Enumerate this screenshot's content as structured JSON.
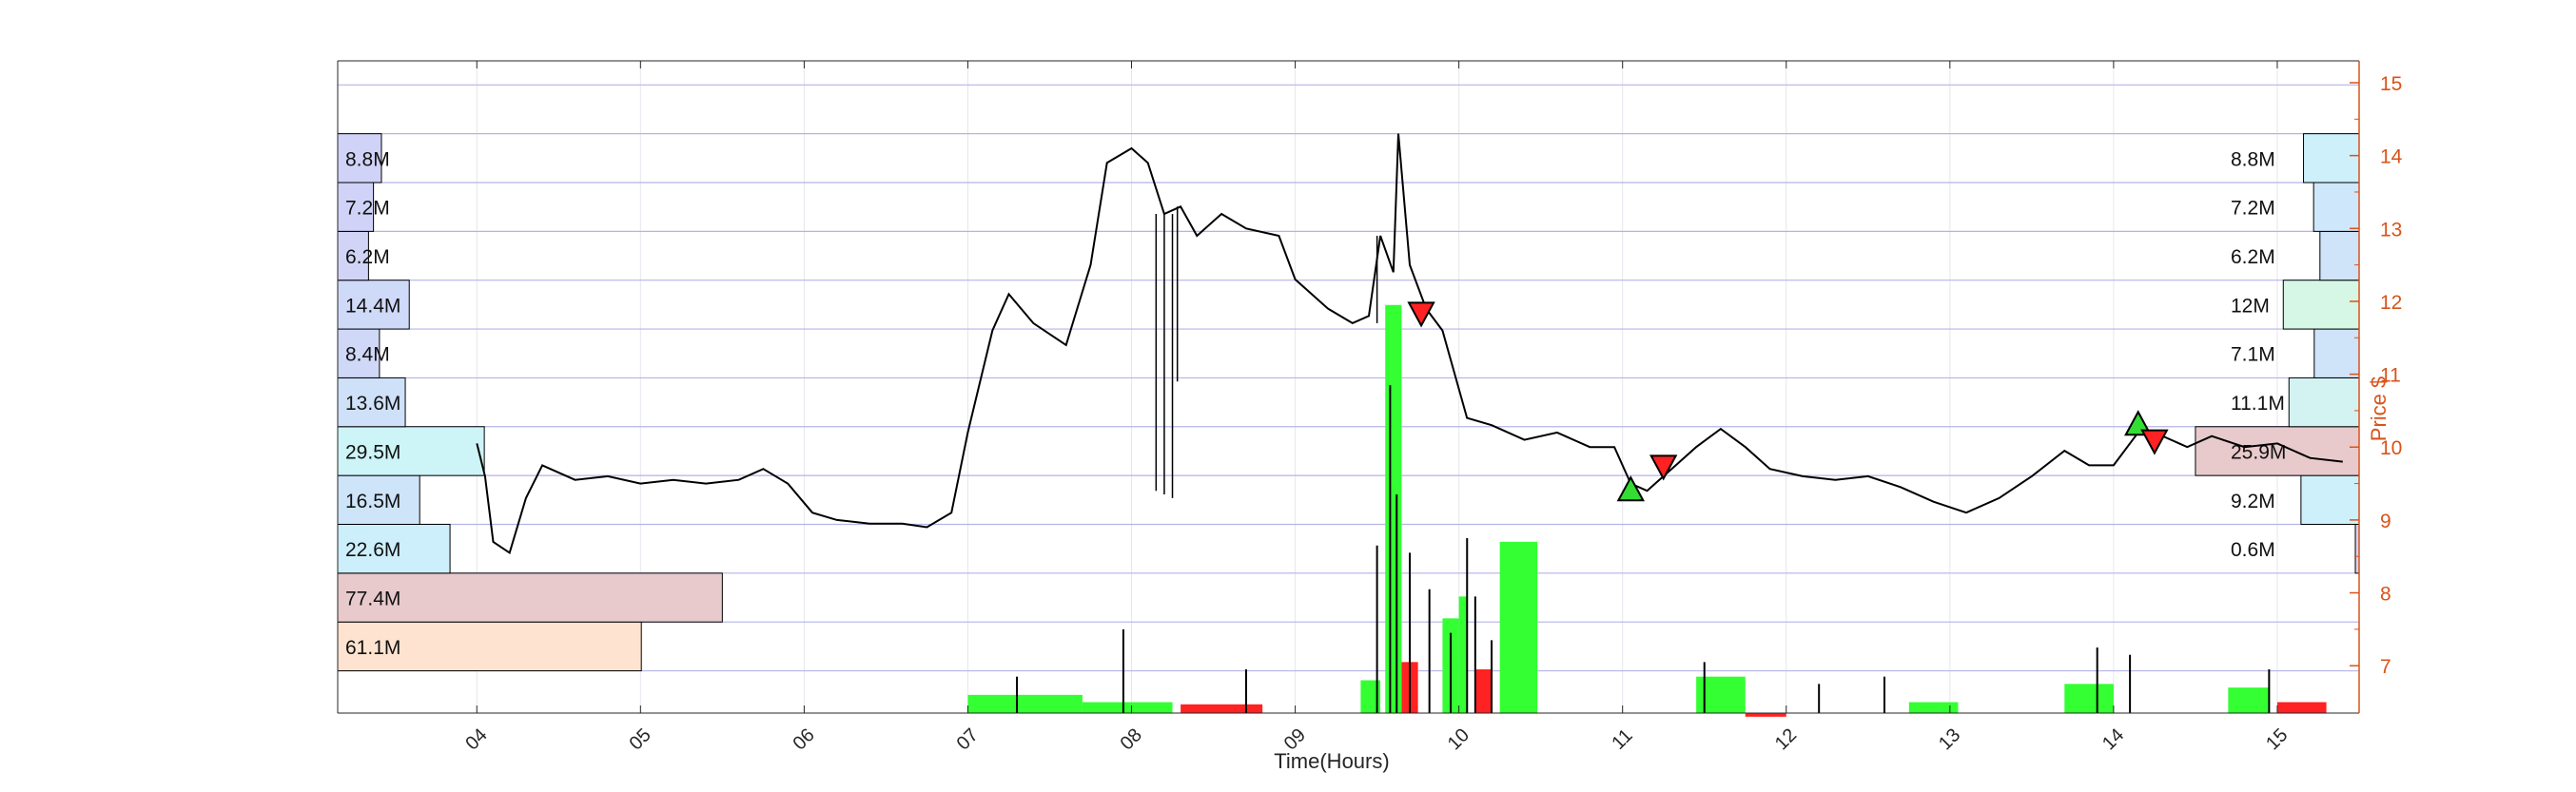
{
  "chart_data": {
    "type": "line",
    "xlabel": "Time(Hours)",
    "ylabel": "Price $",
    "x_ticks": [
      "04",
      "05",
      "06",
      "07",
      "08",
      "09",
      "10",
      "11",
      "12",
      "13",
      "14",
      "15"
    ],
    "xlim": [
      3.15,
      15.5
    ],
    "y_ticks": [
      7,
      8,
      9,
      10,
      11,
      12,
      13,
      14,
      15
    ],
    "ylim": [
      6.35,
      15.3
    ],
    "price_series": {
      "name": "",
      "points": [
        [
          4.0,
          10.05
        ],
        [
          4.05,
          9.6
        ],
        [
          4.1,
          8.7
        ],
        [
          4.2,
          8.55
        ],
        [
          4.3,
          9.3
        ],
        [
          4.4,
          9.75
        ],
        [
          4.6,
          9.55
        ],
        [
          4.8,
          9.6
        ],
        [
          5.0,
          9.5
        ],
        [
          5.2,
          9.55
        ],
        [
          5.4,
          9.5
        ],
        [
          5.6,
          9.55
        ],
        [
          5.75,
          9.7
        ],
        [
          5.9,
          9.5
        ],
        [
          6.05,
          9.1
        ],
        [
          6.2,
          9.0
        ],
        [
          6.4,
          8.95
        ],
        [
          6.6,
          8.95
        ],
        [
          6.75,
          8.9
        ],
        [
          6.9,
          9.1
        ],
        [
          7.0,
          10.2
        ],
        [
          7.15,
          11.6
        ],
        [
          7.25,
          12.1
        ],
        [
          7.4,
          11.7
        ],
        [
          7.6,
          11.4
        ],
        [
          7.75,
          12.5
        ],
        [
          7.85,
          13.9
        ],
        [
          8.0,
          14.1
        ],
        [
          8.1,
          13.9
        ],
        [
          8.2,
          13.2
        ],
        [
          8.3,
          13.3
        ],
        [
          8.4,
          12.9
        ],
        [
          8.55,
          13.2
        ],
        [
          8.7,
          13.0
        ],
        [
          8.9,
          12.9
        ],
        [
          9.0,
          12.3
        ],
        [
          9.2,
          11.9
        ],
        [
          9.35,
          11.7
        ],
        [
          9.45,
          11.8
        ],
        [
          9.52,
          12.9
        ],
        [
          9.6,
          12.4
        ],
        [
          9.63,
          14.3
        ],
        [
          9.7,
          12.5
        ],
        [
          9.8,
          11.9
        ],
        [
          9.9,
          11.6
        ],
        [
          10.05,
          10.4
        ],
        [
          10.2,
          10.3
        ],
        [
          10.4,
          10.1
        ],
        [
          10.6,
          10.2
        ],
        [
          10.8,
          10.0
        ],
        [
          10.95,
          10.0
        ],
        [
          11.05,
          9.5
        ],
        [
          11.15,
          9.4
        ],
        [
          11.3,
          9.7
        ],
        [
          11.45,
          10.0
        ],
        [
          11.6,
          10.25
        ],
        [
          11.75,
          10.0
        ],
        [
          11.9,
          9.7
        ],
        [
          12.1,
          9.6
        ],
        [
          12.3,
          9.55
        ],
        [
          12.5,
          9.6
        ],
        [
          12.7,
          9.45
        ],
        [
          12.9,
          9.25
        ],
        [
          13.1,
          9.1
        ],
        [
          13.3,
          9.3
        ],
        [
          13.5,
          9.6
        ],
        [
          13.7,
          9.95
        ],
        [
          13.85,
          9.75
        ],
        [
          14.0,
          9.75
        ],
        [
          14.15,
          10.2
        ],
        [
          14.3,
          10.15
        ],
        [
          14.45,
          10.0
        ],
        [
          14.6,
          10.15
        ],
        [
          14.8,
          10.0
        ],
        [
          15.0,
          10.05
        ],
        [
          15.2,
          9.85
        ],
        [
          15.4,
          9.8
        ]
      ]
    },
    "dips": [
      {
        "x": 8.15,
        "low": 9.4
      },
      {
        "x": 8.2,
        "low": 9.35
      },
      {
        "x": 8.25,
        "low": 9.3
      },
      {
        "x": 8.28,
        "low": 10.9
      },
      {
        "x": 9.5,
        "low": 11.7
      }
    ],
    "buy_signals": [
      {
        "x": 11.05,
        "y": 9.4
      },
      {
        "x": 14.15,
        "y": 10.3
      }
    ],
    "sell_signals": [
      {
        "x": 11.25,
        "y": 9.75
      },
      {
        "x": 9.77,
        "y": 11.85
      },
      {
        "x": 14.25,
        "y": 10.1
      }
    ],
    "volume_profile_left": {
      "note_bins_price_bottom": [
        7,
        8,
        9,
        10,
        11,
        12,
        13,
        14
      ],
      "bars": [
        {
          "label": "61.1M",
          "value": 61.1,
          "bottom": 6.93,
          "top": 7.6,
          "color": "#fde3d0"
        },
        {
          "label": "77.4M",
          "value": 77.4,
          "bottom": 7.6,
          "top": 8.27,
          "color": "#e8cacc"
        },
        {
          "label": "22.6M",
          "value": 22.6,
          "bottom": 8.27,
          "top": 8.94,
          "color": "#cdeefb"
        },
        {
          "label": "16.5M",
          "value": 16.5,
          "bottom": 8.94,
          "top": 9.61,
          "color": "#cde4f9"
        },
        {
          "label": "29.5M",
          "value": 29.5,
          "bottom": 9.61,
          "top": 10.28,
          "color": "#cdf4f6"
        },
        {
          "label": "13.6M",
          "value": 13.6,
          "bottom": 10.28,
          "top": 10.95,
          "color": "#cfe0f9"
        },
        {
          "label": "8.4M",
          "value": 8.4,
          "bottom": 10.95,
          "top": 11.62,
          "color": "#d0d8f8"
        },
        {
          "label": "14.4M",
          "value": 14.4,
          "bottom": 11.62,
          "top": 12.29,
          "color": "#cfd9f8"
        },
        {
          "label": "6.2M",
          "value": 6.2,
          "bottom": 12.29,
          "top": 12.96,
          "color": "#d2d4f7"
        },
        {
          "label": "7.2M",
          "value": 7.2,
          "bottom": 12.96,
          "top": 13.63,
          "color": "#d0d3f7"
        },
        {
          "label": "8.8M",
          "value": 8.8,
          "bottom": 13.63,
          "top": 14.3,
          "color": "#d0d2f7"
        }
      ]
    },
    "volume_profile_right": {
      "bars": [
        {
          "label": "0.6M",
          "value": 0.6,
          "bottom": 8.27,
          "top": 8.94,
          "color": "#d4d4f5"
        },
        {
          "label": "9.2M",
          "value": 9.2,
          "bottom": 8.94,
          "top": 9.61,
          "color": "#cdf0fb"
        },
        {
          "label": "25.9M",
          "value": 25.9,
          "bottom": 9.61,
          "top": 10.28,
          "color": "#e8cacc"
        },
        {
          "label": "11.1M",
          "value": 11.1,
          "bottom": 10.28,
          "top": 10.95,
          "color": "#d2f3f2"
        },
        {
          "label": "7.1M",
          "value": 7.1,
          "bottom": 10.95,
          "top": 11.62,
          "color": "#cfe3f9"
        },
        {
          "label": "12M",
          "value": 12.0,
          "bottom": 11.62,
          "top": 12.29,
          "color": "#d6f7e6"
        },
        {
          "label": "6.2M",
          "value": 6.2,
          "bottom": 12.29,
          "top": 12.96,
          "color": "#cfe3f9"
        },
        {
          "label": "7.2M",
          "value": 7.2,
          "bottom": 12.96,
          "top": 13.63,
          "color": "#cfe7fa"
        },
        {
          "label": "8.8M",
          "value": 8.8,
          "bottom": 13.63,
          "top": 14.3,
          "color": "#cdf0fb"
        }
      ]
    },
    "volume_blocks": [
      {
        "x0": 7.0,
        "x1": 7.7,
        "height": 0.25,
        "color": "#33ff33"
      },
      {
        "x0": 7.7,
        "x1": 8.25,
        "height": 0.15,
        "color": "#33ff33"
      },
      {
        "x0": 8.3,
        "x1": 8.8,
        "height": 0.12,
        "color": "#ff2222"
      },
      {
        "x0": 9.4,
        "x1": 9.52,
        "height": 0.45,
        "color": "#33ff33"
      },
      {
        "x0": 9.55,
        "x1": 9.65,
        "height": 5.6,
        "color": "#33ff33"
      },
      {
        "x0": 9.65,
        "x1": 9.75,
        "height": 0.7,
        "color": "#ff2222"
      },
      {
        "x0": 9.9,
        "x1": 10.0,
        "height": 1.3,
        "color": "#33ff33"
      },
      {
        "x0": 10.0,
        "x1": 10.05,
        "height": 1.6,
        "color": "#33ff33"
      },
      {
        "x0": 10.25,
        "x1": 10.48,
        "height": 2.35,
        "color": "#33ff33"
      },
      {
        "x0": 10.1,
        "x1": 10.2,
        "height": 0.6,
        "color": "#ff2222"
      },
      {
        "x0": 11.45,
        "x1": 11.75,
        "height": 0.5,
        "color": "#33ff33"
      },
      {
        "x0": 11.75,
        "x1": 12.0,
        "height": -0.05,
        "color": "#ff2222"
      },
      {
        "x0": 12.75,
        "x1": 13.05,
        "height": 0.15,
        "color": "#33ff33"
      },
      {
        "x0": 13.7,
        "x1": 14.0,
        "height": 0.4,
        "color": "#33ff33"
      },
      {
        "x0": 14.7,
        "x1": 14.95,
        "height": 0.35,
        "color": "#33ff33"
      },
      {
        "x0": 15.0,
        "x1": 15.3,
        "height": 0.15,
        "color": "#ff2222"
      }
    ],
    "volume_spikes": [
      [
        9.5,
        2.3
      ],
      [
        9.58,
        4.5
      ],
      [
        9.62,
        3.0
      ],
      [
        9.7,
        2.2
      ],
      [
        9.82,
        1.7
      ],
      [
        9.95,
        1.1
      ],
      [
        10.05,
        2.4
      ],
      [
        10.1,
        1.6
      ],
      [
        10.2,
        1.0
      ],
      [
        7.95,
        1.15
      ],
      [
        8.7,
        0.6
      ],
      [
        11.5,
        0.7
      ],
      [
        13.9,
        0.9
      ],
      [
        14.1,
        0.8
      ],
      [
        14.95,
        0.6
      ],
      [
        7.3,
        0.5
      ],
      [
        12.2,
        0.4
      ],
      [
        12.6,
        0.5
      ]
    ],
    "grid": true,
    "legend": "none",
    "colors": {
      "price_line": "#000000",
      "right_axis": "#d95319",
      "grid": "#b4b4e8",
      "buy_signal": "#33dd33",
      "sell_signal": "#ff2222"
    }
  }
}
